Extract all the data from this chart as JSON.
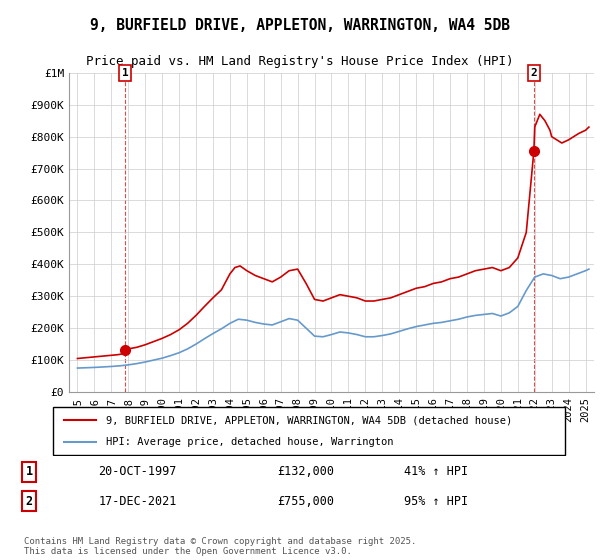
{
  "title_line1": "9, BURFIELD DRIVE, APPLETON, WARRINGTON, WA4 5DB",
  "title_line2": "Price paid vs. HM Land Registry's House Price Index (HPI)",
  "xlabel": "",
  "ylabel": "",
  "background_color": "#ffffff",
  "plot_bg_color": "#ffffff",
  "grid_color": "#cccccc",
  "red_line_color": "#cc0000",
  "blue_line_color": "#6699cc",
  "point1_year": 1997.8,
  "point1_value": 132000,
  "point2_year": 2021.95,
  "point2_value": 755000,
  "ylim_max": 1000000,
  "xlim_min": 1994.5,
  "xlim_max": 2025.5,
  "legend_line1": "9, BURFIELD DRIVE, APPLETON, WARRINGTON, WA4 5DB (detached house)",
  "legend_line2": "HPI: Average price, detached house, Warrington",
  "annotation1_label": "1",
  "annotation1_date": "20-OCT-1997",
  "annotation1_price": "£132,000",
  "annotation1_hpi": "41% ↑ HPI",
  "annotation2_label": "2",
  "annotation2_date": "17-DEC-2021",
  "annotation2_price": "£755,000",
  "annotation2_hpi": "95% ↑ HPI",
  "footer": "Contains HM Land Registry data © Crown copyright and database right 2025.\nThis data is licensed under the Open Government Licence v3.0.",
  "hpi_red_years": [
    1995.0,
    1995.1,
    1995.2,
    1995.3,
    1995.4,
    1995.5,
    1995.6,
    1995.7,
    1995.8,
    1995.9,
    1996.0,
    1996.1,
    1996.2,
    1996.3,
    1996.4,
    1996.5,
    1996.6,
    1996.7,
    1996.8,
    1996.9,
    1997.0,
    1997.2,
    1997.4,
    1997.6,
    1997.8,
    1997.85,
    1998.0,
    1998.5,
    1999.0,
    1999.5,
    2000.0,
    2000.5,
    2001.0,
    2001.5,
    2002.0,
    2002.5,
    2003.0,
    2003.5,
    2004.0,
    2004.3,
    2004.6,
    2005.0,
    2005.5,
    2006.0,
    2006.5,
    2007.0,
    2007.5,
    2008.0,
    2008.5,
    2009.0,
    2009.5,
    2010.0,
    2010.5,
    2011.0,
    2011.5,
    2012.0,
    2012.5,
    2013.0,
    2013.5,
    2014.0,
    2014.5,
    2015.0,
    2015.5,
    2016.0,
    2016.5,
    2017.0,
    2017.5,
    2018.0,
    2018.5,
    2019.0,
    2019.5,
    2020.0,
    2020.5,
    2021.0,
    2021.5,
    2021.95,
    2022.0,
    2022.3,
    2022.6,
    2022.9,
    2023.0,
    2023.3,
    2023.6,
    2024.0,
    2024.3,
    2024.6,
    2025.0,
    2025.2
  ],
  "hpi_red_values": [
    105000,
    105500,
    106000,
    106500,
    107000,
    107500,
    108000,
    108500,
    109000,
    109500,
    110000,
    110500,
    111000,
    111500,
    112000,
    112500,
    113000,
    113500,
    114000,
    114500,
    115000,
    116000,
    117000,
    119000,
    132000,
    133000,
    135000,
    140000,
    148000,
    158000,
    168000,
    180000,
    195000,
    215000,
    240000,
    268000,
    295000,
    320000,
    370000,
    390000,
    395000,
    380000,
    365000,
    355000,
    345000,
    360000,
    380000,
    385000,
    340000,
    290000,
    285000,
    295000,
    305000,
    300000,
    295000,
    285000,
    285000,
    290000,
    295000,
    305000,
    315000,
    325000,
    330000,
    340000,
    345000,
    355000,
    360000,
    370000,
    380000,
    385000,
    390000,
    380000,
    390000,
    420000,
    500000,
    755000,
    830000,
    870000,
    850000,
    820000,
    800000,
    790000,
    780000,
    790000,
    800000,
    810000,
    820000,
    830000
  ],
  "hpi_blue_years": [
    1995.0,
    1995.5,
    1996.0,
    1996.5,
    1997.0,
    1997.5,
    1998.0,
    1998.5,
    1999.0,
    1999.5,
    2000.0,
    2000.5,
    2001.0,
    2001.5,
    2002.0,
    2002.5,
    2003.0,
    2003.5,
    2004.0,
    2004.5,
    2005.0,
    2005.5,
    2006.0,
    2006.5,
    2007.0,
    2007.5,
    2008.0,
    2008.5,
    2009.0,
    2009.5,
    2010.0,
    2010.5,
    2011.0,
    2011.5,
    2012.0,
    2012.5,
    2013.0,
    2013.5,
    2014.0,
    2014.5,
    2015.0,
    2015.5,
    2016.0,
    2016.5,
    2017.0,
    2017.5,
    2018.0,
    2018.5,
    2019.0,
    2019.5,
    2020.0,
    2020.5,
    2021.0,
    2021.5,
    2022.0,
    2022.5,
    2023.0,
    2023.5,
    2024.0,
    2024.5,
    2025.0,
    2025.2
  ],
  "hpi_blue_values": [
    75000,
    76000,
    77000,
    78500,
    80000,
    82000,
    85000,
    89000,
    94000,
    100000,
    106000,
    114000,
    123000,
    135000,
    150000,
    167000,
    183000,
    198000,
    215000,
    228000,
    225000,
    218000,
    213000,
    210000,
    220000,
    230000,
    225000,
    200000,
    175000,
    173000,
    180000,
    188000,
    185000,
    180000,
    173000,
    173000,
    177000,
    182000,
    190000,
    198000,
    205000,
    210000,
    215000,
    218000,
    223000,
    228000,
    235000,
    240000,
    243000,
    246000,
    238000,
    248000,
    268000,
    318000,
    360000,
    370000,
    365000,
    355000,
    360000,
    370000,
    380000,
    385000
  ]
}
